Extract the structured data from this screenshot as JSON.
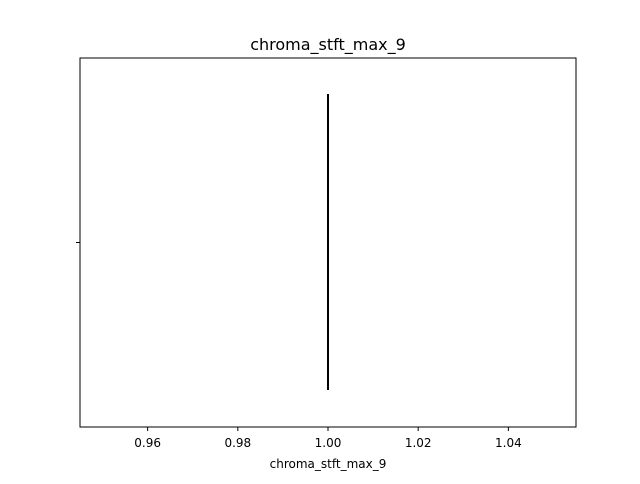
{
  "chart_data": {
    "type": "box",
    "title": "chroma_stft_max_9",
    "xlabel": "chroma_stft_max_9",
    "ylabel": "",
    "xlim": [
      0.945,
      1.055
    ],
    "xticks": [
      0.96,
      0.98,
      1.0,
      1.02,
      1.04
    ],
    "xtick_labels": [
      "0.96",
      "0.98",
      "1.00",
      "1.02",
      "1.04"
    ],
    "orientation": "horizontal",
    "grid": false,
    "series": [
      {
        "min": 1.0,
        "q1": 1.0,
        "median": 1.0,
        "q3": 1.0,
        "max": 1.0
      }
    ],
    "colors": {
      "median_line": "#000000",
      "axes": "#000000",
      "background": "#ffffff"
    }
  }
}
